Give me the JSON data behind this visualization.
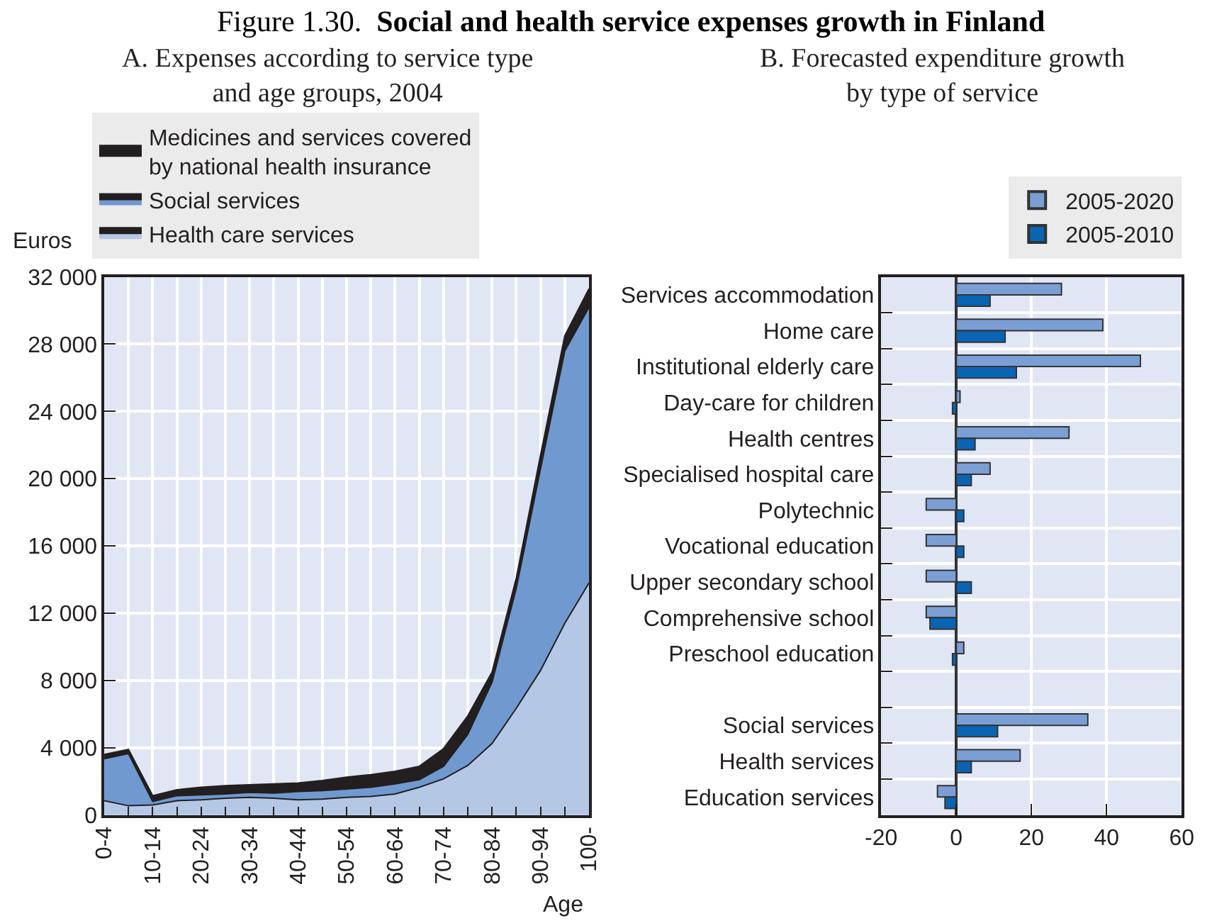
{
  "chart_data": [
    {
      "type": "area",
      "stacked": true,
      "title": "A. Expenses according to service type\nand age groups, 2004",
      "xlabel": "Age",
      "ylabel": "Euros",
      "annotations": [
        "Figure 1.30.",
        "Social and health service expenses growth in Finland"
      ],
      "categories": [
        "0-4",
        null,
        "10-14",
        null,
        "20-24",
        null,
        "30-34",
        null,
        "40-44",
        null,
        "50-54",
        null,
        "60-64",
        null,
        "70-74",
        null,
        "80-84",
        null,
        "90-94",
        null,
        "100-"
      ],
      "series": [
        {
          "name": "Health care services",
          "color": "#b4c8e6",
          "values": [
            850,
            550,
            600,
            850,
            900,
            1000,
            1050,
            1000,
            900,
            950,
            1050,
            1100,
            1250,
            1650,
            2150,
            2950,
            4250,
            6350,
            8600,
            11400,
            13800
          ]
        },
        {
          "name": "Social services",
          "color": "#7099d0",
          "values": [
            2500,
            3100,
            200,
            300,
            300,
            250,
            300,
            300,
            500,
            500,
            500,
            550,
            600,
            450,
            750,
            1850,
            3650,
            7150,
            12000,
            16200,
            16400
          ]
        },
        {
          "name": "Medicines and services covered\nby national health insurance",
          "color": "#231f20",
          "values": [
            250,
            250,
            350,
            350,
            450,
            500,
            450,
            550,
            500,
            600,
            700,
            750,
            750,
            800,
            1050,
            1100,
            600,
            600,
            800,
            900,
            1100
          ]
        }
      ],
      "ylim": [
        0,
        32000
      ],
      "yticks": [
        0,
        {
          "value": 4000,
          "label": "4 000"
        },
        {
          "value": 8000,
          "label": "8 000"
        },
        {
          "value": 12000,
          "label": "12 000"
        },
        {
          "value": 16000,
          "label": "16 000"
        },
        {
          "value": 20000,
          "label": "20 000"
        },
        {
          "value": 24000,
          "label": "24 000"
        },
        {
          "value": 28000,
          "label": "28 000"
        },
        {
          "value": 32000,
          "label": "32 000"
        }
      ],
      "grid": true,
      "legend": "top left"
    },
    {
      "type": "bar",
      "orientation": "horizontal",
      "title": "B. Forecasted expenditure growth\nby type of service",
      "categories": [
        "Services accommodation",
        "Home care",
        "Institutional elderly care",
        "Day-care for children",
        "Health centres",
        "Specialised hospital care",
        "Polytechnic",
        "Vocational education",
        "Upper secondary school",
        "Comprehensive school",
        "Preschool education",
        null,
        "Social services",
        "Health services",
        "Education services"
      ],
      "series": [
        {
          "name": "2005-2020",
          "color": "#7b9fd4",
          "values": [
            28,
            39,
            49,
            1,
            30,
            9,
            -8,
            -8,
            -8,
            -8,
            2,
            null,
            35,
            17,
            -5
          ]
        },
        {
          "name": "2005-2010",
          "color": "#0a64b4",
          "values": [
            9,
            13,
            16,
            -1,
            5,
            4,
            2,
            2,
            4,
            -7,
            -1,
            null,
            11,
            4,
            -3
          ]
        }
      ],
      "xlim": [
        -20,
        60
      ],
      "xticks": [
        -20,
        0,
        20,
        40,
        60
      ],
      "grid": true,
      "legend": "top right"
    }
  ]
}
